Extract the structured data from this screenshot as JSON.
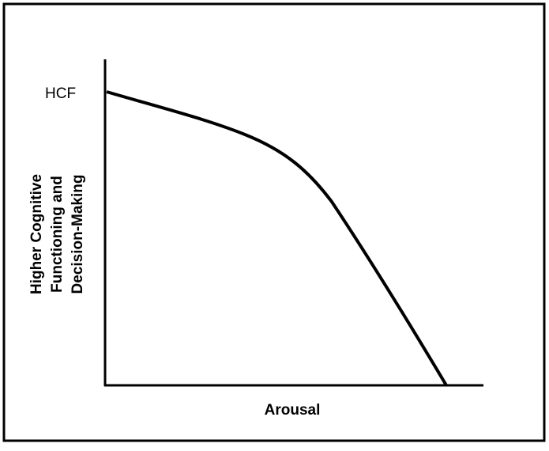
{
  "axis_labels": {
    "y_top": "HCF",
    "y": [
      "Higher Cognitive",
      "Functioning and",
      "Decision-Making"
    ],
    "x": "Arousal"
  }
}
